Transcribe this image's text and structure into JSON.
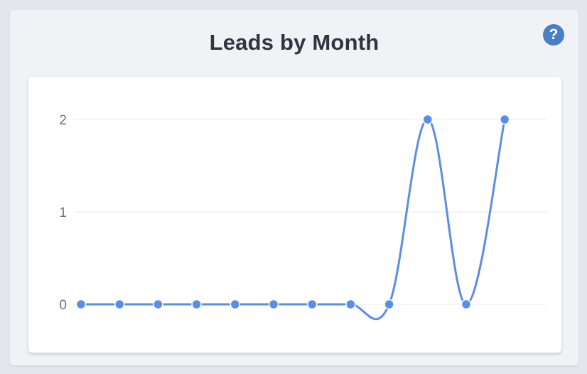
{
  "header": {
    "title": "Leads by Month",
    "help_icon": "question-circle-icon",
    "help_glyph": "?"
  },
  "colors": {
    "line": "#5a8ee6",
    "help_button": "#4a7fc6",
    "grid": "#ebebeb",
    "tick_text": "#6f737a"
  },
  "chart_data": {
    "type": "line",
    "title": "Leads by Month",
    "xlabel": "",
    "ylabel": "",
    "x": [
      1,
      2,
      3,
      4,
      5,
      6,
      7,
      8,
      9,
      10,
      11,
      12
    ],
    "series": [
      {
        "values": [
          0,
          0,
          0,
          0,
          0,
          0,
          0,
          0,
          0,
          2,
          0,
          2
        ]
      }
    ],
    "ylim": [
      0,
      2
    ],
    "yticks": [
      "0",
      "1",
      "2"
    ],
    "grid": true,
    "smooth": true,
    "legend": "none"
  }
}
